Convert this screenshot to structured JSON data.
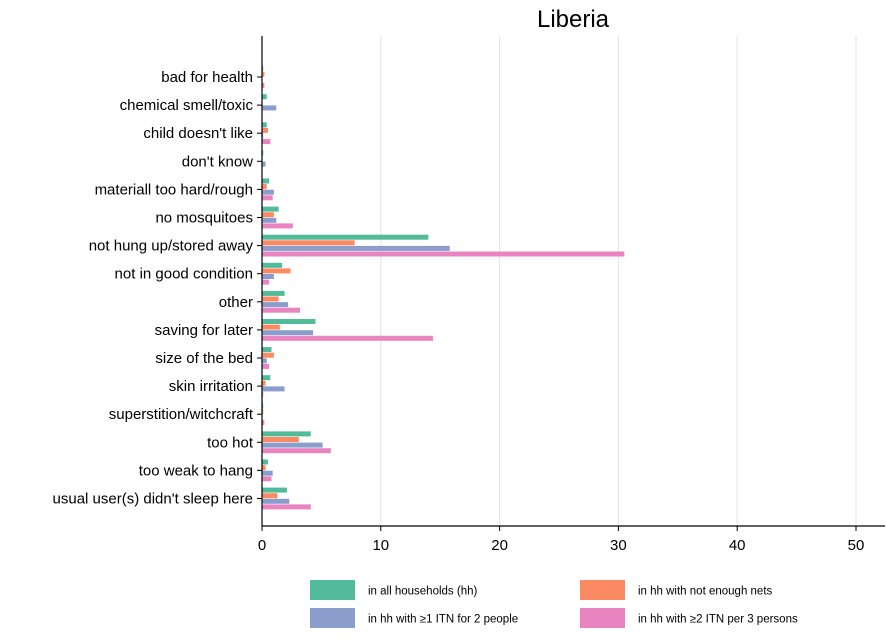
{
  "chart_data": {
    "type": "bar",
    "orientation": "horizontal",
    "title": "Liberia",
    "xlabel": "",
    "ylabel": "",
    "xlim": [
      0,
      52
    ],
    "xticks": [
      0,
      10,
      20,
      30,
      40,
      50
    ],
    "grid": "vertical",
    "legend_position": "bottom",
    "categories": [
      "bad for health",
      "chemical smell/toxic",
      "child doesn't like",
      "don't know",
      "materiall too hard/rough",
      "no mosquitoes",
      "not hung up/stored away",
      "not in good condition",
      "other",
      "saving for later",
      "size of the bed",
      "skin irritation",
      "superstition/witchcraft",
      "too hot",
      "too weak to hang",
      "usual user(s) didn't sleep here"
    ],
    "series": [
      {
        "name": "in all households (hh)",
        "color": "#52bb9a",
        "values": [
          0.1,
          0.4,
          0.4,
          0.1,
          0.6,
          1.4,
          14.0,
          1.7,
          1.9,
          4.5,
          0.8,
          0.7,
          0.1,
          4.1,
          0.5,
          2.1
        ]
      },
      {
        "name": "in hh with not enough nets",
        "color": "#fb8a62",
        "values": [
          0.2,
          0.0,
          0.5,
          0.0,
          0.4,
          1.0,
          7.8,
          2.4,
          1.4,
          1.5,
          1.0,
          0.3,
          0.1,
          3.1,
          0.3,
          1.3
        ]
      },
      {
        "name": "in hh with ≥1 ITN for 2 people",
        "color": "#8a9dcb",
        "values": [
          0.0,
          1.2,
          0.1,
          0.3,
          1.0,
          1.2,
          15.8,
          1.0,
          2.2,
          4.3,
          0.4,
          1.9,
          0.0,
          5.1,
          0.9,
          2.3
        ]
      },
      {
        "name": "in hh with ≥2 ITN per 3 persons",
        "color": "#e885c0",
        "values": [
          0.2,
          0.0,
          0.7,
          0.0,
          0.9,
          2.6,
          30.5,
          0.6,
          3.2,
          14.4,
          0.6,
          0.1,
          0.2,
          5.8,
          0.8,
          4.1
        ]
      }
    ]
  }
}
